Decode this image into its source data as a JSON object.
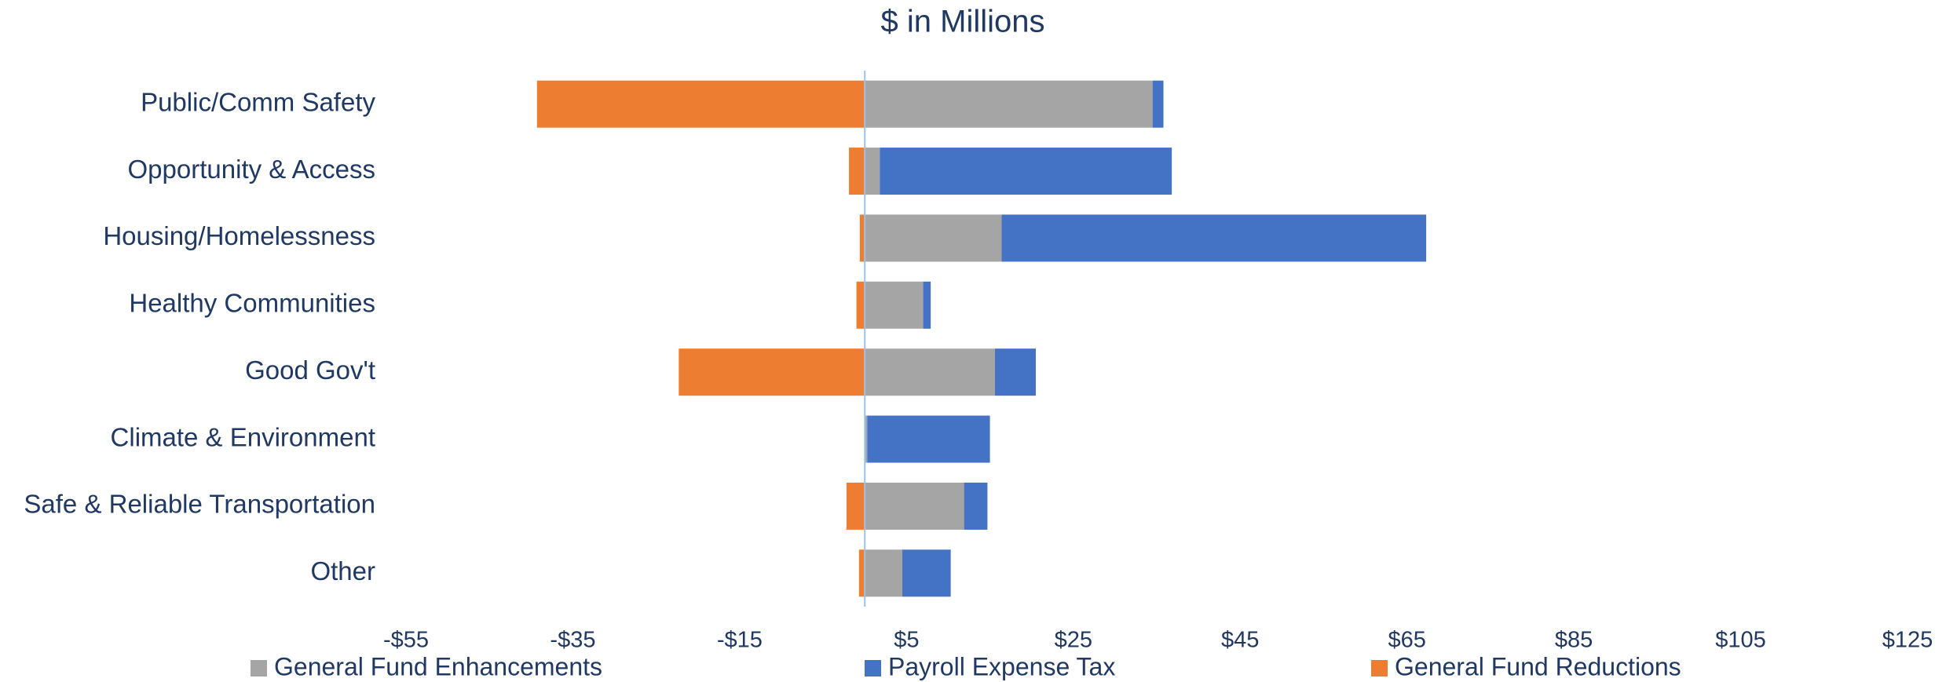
{
  "chart_data": {
    "type": "stacked_barh",
    "title": "$ in Millions",
    "categories": [
      "Public/Comm Safety",
      "Opportunity & Access",
      "Housing/Homelessness",
      "Healthy Communities",
      "Good Gov't",
      "Climate & Environment",
      "Safe & Reliable Transportation",
      "Other"
    ],
    "series": [
      {
        "name": "General Fund Enhancements",
        "color": "#a5a5a5",
        "values": [
          34.5,
          1.8,
          16.4,
          7.0,
          15.6,
          0.3,
          11.9,
          4.5
        ]
      },
      {
        "name": "Payroll Expense Tax",
        "color": "#4472c4",
        "values": [
          1.3,
          35.0,
          50.9,
          0.9,
          4.9,
          14.7,
          2.8,
          5.8
        ]
      },
      {
        "name": "General Fund Reductions",
        "color": "#ed7d31",
        "values": [
          -39.3,
          -1.9,
          -0.6,
          -1.0,
          -22.3,
          0,
          -2.2,
          -0.7
        ]
      }
    ],
    "xlim": [
      -55,
      125
    ],
    "xticks": [
      {
        "value": -55,
        "label": "-$55"
      },
      {
        "value": -35,
        "label": "-$35"
      },
      {
        "value": -15,
        "label": "-$15"
      },
      {
        "value": 5,
        "label": "$5"
      },
      {
        "value": 25,
        "label": "$25"
      },
      {
        "value": 45,
        "label": "$45"
      },
      {
        "value": 65,
        "label": "$65"
      },
      {
        "value": 85,
        "label": "$85"
      },
      {
        "value": 105,
        "label": "$105"
      },
      {
        "value": 125,
        "label": "$125"
      }
    ],
    "legend": "bottom"
  }
}
